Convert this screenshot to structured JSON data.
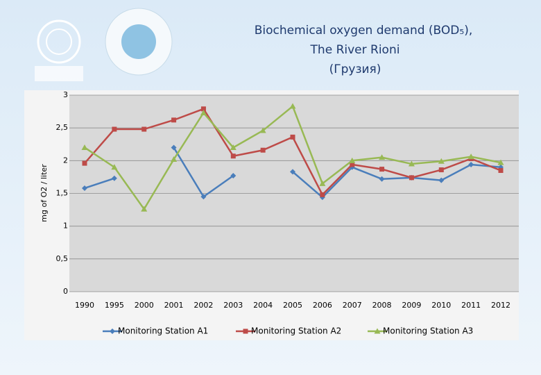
{
  "chart_data": {
    "type": "line",
    "title": [
      "Biochemical oxygen demand (BOD₅),",
      "The River Rioni",
      "(Грузия)"
    ],
    "y_label": "mg  of  O2 / liter",
    "categories": [
      "1990",
      "1995",
      "2000",
      "2001",
      "2002",
      "2003",
      "2004",
      "2005",
      "2006",
      "2007",
      "2008",
      "2009",
      "2010",
      "2011",
      "2012"
    ],
    "series": [
      {
        "name": "Monitoring Station A1",
        "color": "#4a7ebb",
        "marker": "diamond",
        "values": [
          1.58,
          1.73,
          null,
          2.2,
          1.45,
          1.77,
          null,
          1.83,
          1.44,
          1.9,
          1.72,
          1.74,
          1.7,
          1.94,
          1.9
        ]
      },
      {
        "name": "Monitoring Station A2",
        "color": "#be4b48",
        "marker": "square",
        "values": [
          1.96,
          2.48,
          2.48,
          2.62,
          2.79,
          2.07,
          2.16,
          2.36,
          1.48,
          1.94,
          1.87,
          1.74,
          1.86,
          2.03,
          1.85
        ]
      },
      {
        "name": "Monitoring Station A3",
        "color": "#98b954",
        "marker": "triangle",
        "values": [
          2.2,
          1.9,
          1.26,
          2.02,
          2.73,
          2.2,
          2.46,
          2.83,
          1.65,
          2.0,
          2.05,
          1.95,
          1.99,
          2.06,
          1.97
        ]
      }
    ],
    "ylim": [
      0,
      3
    ],
    "yticks": [
      0,
      {
        "value": 0.5,
        "label": "0,5"
      },
      1,
      {
        "value": 1.5,
        "label": "1,5"
      },
      2,
      {
        "value": 2.5,
        "label": "2,5"
      },
      3
    ],
    "grid": true,
    "legend": "bottom"
  }
}
